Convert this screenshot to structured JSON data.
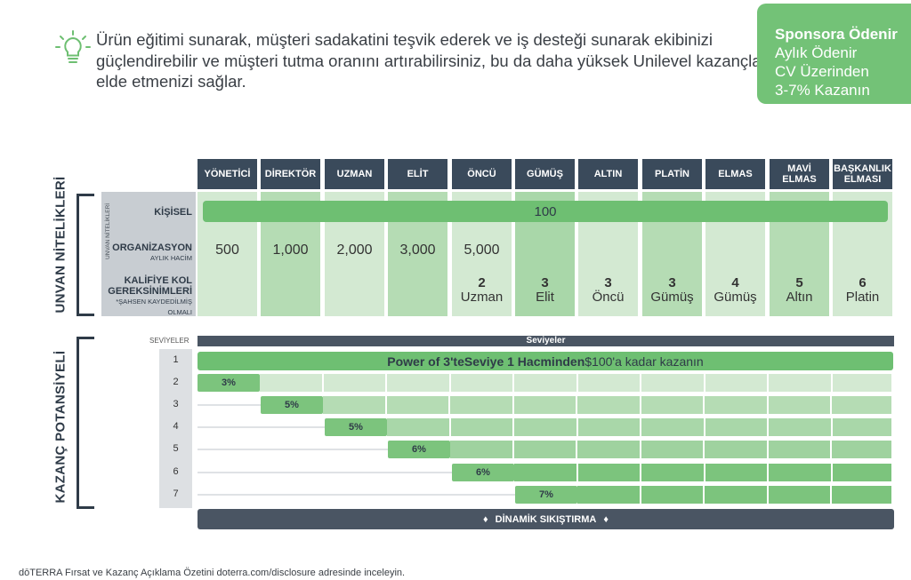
{
  "intro": {
    "icon": "lightbulb-icon",
    "text": "Ürün eğitimi sunarak, müşteri sadakatini teşvik ederek ve iş desteği sunarak ekibinizi güçlendirebilir ve müşteri tutma oranını artırabilirsiniz, bu da daha yüksek Unilevel kazançları elde etmenizi sağlar."
  },
  "sponsor": {
    "title": "Sponsora Ödenir",
    "line1": "Aylık Ödenir",
    "line2": "CV Üzerinden",
    "line3": "3-7% Kazanın"
  },
  "sections": {
    "rank_qualifications": "UNVAN NİTELİKLERİ",
    "earning_potential": "KAZANÇ POTANSİYELİ",
    "qual_side": "UNVAN NİTELİKLERİ"
  },
  "ranks": [
    "YÖNETİCİ",
    "DİREKTÖR",
    "UZMAN",
    "ELİT",
    "ÖNCÜ",
    "GÜMÜŞ",
    "ALTIN",
    "PLATİN",
    "ELMAS",
    "MAVİ ELMAS",
    "BAŞKANLIK ELMASI"
  ],
  "rows": {
    "personal_label": "KİŞİSEL",
    "personal_value": "100",
    "org_label": "ORGANİZASYON",
    "org_sub": "AYLIK HACİM",
    "org_values": [
      "500",
      "1,000",
      "2,000",
      "3,000",
      "5,000"
    ],
    "legs_label1": "KALİFİYE KOL",
    "legs_label2": "GEREKSİNİMLERİ",
    "legs_sub": "*ŞAHSEN KAYDEDİLMİŞ OLMALI",
    "legs": [
      {
        "count": "2",
        "rank": "Uzman"
      },
      {
        "count": "3",
        "rank": "Elit"
      },
      {
        "count": "3",
        "rank": "Öncü"
      },
      {
        "count": "3",
        "rank": "Gümüş"
      },
      {
        "count": "4",
        "rank": "Gümüş"
      },
      {
        "count": "5",
        "rank": "Altın"
      },
      {
        "count": "6",
        "rank": "Platin"
      }
    ]
  },
  "levels": {
    "column_header": "SEVİYELER",
    "bar_header": "Seviyeler",
    "numbers": [
      "1",
      "2",
      "3",
      "4",
      "5",
      "6",
      "7"
    ],
    "level1_text_a": "Power of 3'te ",
    "level1_text_b": "Seviye 1 Hacminden",
    "level1_text_c": " $100'a kadar kazanın",
    "percents": [
      "3%",
      "5%",
      "5%",
      "6%",
      "6%",
      "7%"
    ]
  },
  "compression": "DİNAMİK SIKIŞTIRMA",
  "footer": "dōTERRA Fırsat ve Kazanç Açıklama Özetini doterra.com/disclosure adresinde inceleyin.",
  "colors": {
    "green_dark": "#6ebf72",
    "green_light": "#d3e9d2",
    "header_navy": "#3a4a5b"
  }
}
